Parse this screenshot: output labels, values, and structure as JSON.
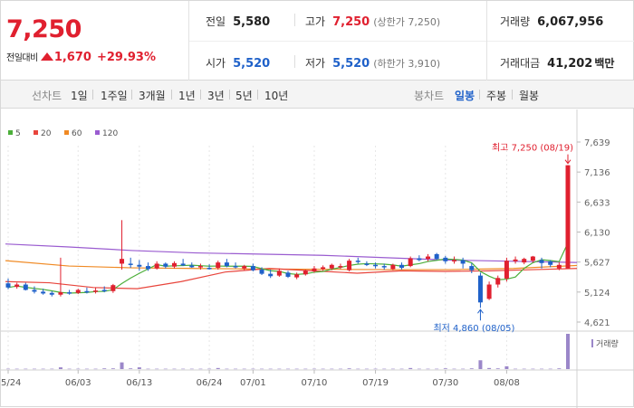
{
  "header": {
    "price": "7,250",
    "change_label": "전일대비",
    "change_value": "1,670",
    "change_pct": "+29.93%",
    "prev_close": {
      "label": "전일",
      "value": "5,580"
    },
    "high": {
      "label": "고가",
      "value": "7,250",
      "limit_label": "(상한가 7,250)"
    },
    "volume": {
      "label": "거래량",
      "value": "6,067,956"
    },
    "open": {
      "label": "시가",
      "value": "5,520"
    },
    "low": {
      "label": "저가",
      "value": "5,520",
      "limit_label": "(하한가 3,910)"
    },
    "amount": {
      "label": "거래대금",
      "value": "41,202",
      "unit": "백만"
    }
  },
  "toolbar": {
    "line_label": "선차트",
    "periods": [
      "1일",
      "1주일",
      "3개월",
      "1년",
      "3년",
      "5년",
      "10년"
    ],
    "candle_label": "봉차트",
    "candle_types": [
      "일봉",
      "주봉",
      "월봉"
    ],
    "active_candle": "일봉"
  },
  "colors": {
    "up": "#e0202f",
    "down": "#1f61c9",
    "ma5": "#4caf3a",
    "ma20": "#e8453c",
    "ma60": "#f08a24",
    "ma120": "#9a5cd0",
    "volume": "#9b87c9"
  },
  "chart_data": {
    "type": "candlestick",
    "legend": [
      {
        "name": "5",
        "color": "#4caf3a"
      },
      {
        "name": "20",
        "color": "#e8453c"
      },
      {
        "name": "60",
        "color": "#f08a24"
      },
      {
        "name": "120",
        "color": "#9a5cd0"
      }
    ],
    "y_ticks": [
      "7,639",
      "7,136",
      "6,633",
      "6,130",
      "5,627",
      "5,124",
      "4,621"
    ],
    "ylim": [
      4621,
      7639
    ],
    "x_ticks": [
      "05/24",
      "06/03",
      "06/13",
      "06/24",
      "07/01",
      "07/10",
      "07/19",
      "07/30",
      "08/08"
    ],
    "x_tick_index": [
      0,
      8,
      15,
      23,
      28,
      35,
      42,
      50,
      57
    ],
    "high_annotation": "최고 7,250 (08/19)",
    "low_annotation": "최저 4,860 (08/05)",
    "volume_label": "거래량",
    "candles": [
      [
        5270,
        5350,
        5170,
        5200
      ],
      [
        5210,
        5280,
        5180,
        5250
      ],
      [
        5250,
        5280,
        5150,
        5160
      ],
      [
        5160,
        5220,
        5100,
        5130
      ],
      [
        5130,
        5180,
        5080,
        5100
      ],
      [
        5110,
        5140,
        5050,
        5080
      ],
      [
        5080,
        5700,
        5050,
        5120
      ],
      [
        5120,
        5160,
        5080,
        5100
      ],
      [
        5110,
        5180,
        5090,
        5160
      ],
      [
        5140,
        5200,
        5100,
        5130
      ],
      [
        5130,
        5200,
        5100,
        5150
      ],
      [
        5160,
        5220,
        5120,
        5140
      ],
      [
        5140,
        5260,
        5110,
        5240
      ],
      [
        5600,
        6330,
        5500,
        5680
      ],
      [
        5600,
        5700,
        5530,
        5580
      ],
      [
        5580,
        5660,
        5480,
        5550
      ],
      [
        5560,
        5620,
        5480,
        5510
      ],
      [
        5520,
        5640,
        5500,
        5600
      ],
      [
        5600,
        5620,
        5520,
        5550
      ],
      [
        5550,
        5640,
        5520,
        5610
      ],
      [
        5600,
        5680,
        5560,
        5570
      ],
      [
        5570,
        5620,
        5530,
        5540
      ],
      [
        5540,
        5600,
        5500,
        5560
      ],
      [
        5530,
        5590,
        5500,
        5510
      ],
      [
        5530,
        5650,
        5500,
        5620
      ],
      [
        5620,
        5680,
        5540,
        5560
      ],
      [
        5560,
        5620,
        5520,
        5540
      ],
      [
        5520,
        5580,
        5490,
        5560
      ],
      [
        5560,
        5600,
        5470,
        5490
      ],
      [
        5500,
        5540,
        5410,
        5430
      ],
      [
        5430,
        5500,
        5360,
        5390
      ],
      [
        5400,
        5520,
        5380,
        5480
      ],
      [
        5450,
        5480,
        5360,
        5380
      ],
      [
        5370,
        5450,
        5340,
        5420
      ],
      [
        5420,
        5500,
        5400,
        5480
      ],
      [
        5470,
        5560,
        5450,
        5520
      ],
      [
        5510,
        5570,
        5480,
        5540
      ],
      [
        5520,
        5600,
        5490,
        5580
      ],
      [
        5540,
        5600,
        5510,
        5560
      ],
      [
        5490,
        5680,
        5470,
        5650
      ],
      [
        5650,
        5700,
        5600,
        5630
      ],
      [
        5600,
        5640,
        5560,
        5580
      ],
      [
        5580,
        5620,
        5520,
        5560
      ],
      [
        5560,
        5600,
        5500,
        5540
      ],
      [
        5510,
        5600,
        5490,
        5580
      ],
      [
        5580,
        5620,
        5500,
        5530
      ],
      [
        5560,
        5720,
        5540,
        5690
      ],
      [
        5690,
        5740,
        5640,
        5660
      ],
      [
        5680,
        5760,
        5640,
        5720
      ],
      [
        5760,
        5780,
        5660,
        5680
      ],
      [
        5700,
        5730,
        5600,
        5640
      ],
      [
        5650,
        5720,
        5600,
        5660
      ],
      [
        5660,
        5700,
        5520,
        5600
      ],
      [
        5560,
        5610,
        5440,
        5490
      ],
      [
        5400,
        5450,
        4860,
        4950
      ],
      [
        5010,
        5300,
        4990,
        5250
      ],
      [
        5250,
        5400,
        5200,
        5360
      ],
      [
        5350,
        5700,
        5300,
        5650
      ],
      [
        5640,
        5720,
        5600,
        5670
      ],
      [
        5620,
        5700,
        5590,
        5680
      ],
      [
        5650,
        5730,
        5620,
        5720
      ],
      [
        5660,
        5700,
        5520,
        5610
      ],
      [
        5640,
        5660,
        5540,
        5580
      ],
      [
        5520,
        5620,
        5490,
        5580
      ],
      [
        5520,
        7250,
        5520,
        7250
      ]
    ],
    "volume": [
      1,
      1,
      1,
      1,
      1,
      1,
      5,
      1,
      1,
      1,
      1,
      2,
      2,
      19,
      2,
      5,
      1,
      1,
      1,
      1,
      1,
      1,
      1,
      1,
      3,
      1,
      1,
      1,
      1,
      1,
      1,
      1,
      1,
      1,
      1,
      1,
      1,
      1,
      1,
      2,
      1,
      1,
      1,
      1,
      1,
      1,
      3,
      1,
      1,
      1,
      2,
      1,
      1,
      2,
      25,
      3,
      2,
      8,
      1,
      1,
      1,
      1,
      1,
      2,
      100
    ],
    "ma120": [
      5930,
      5880,
      5820,
      5780,
      5760,
      5740,
      5700,
      5660,
      5640,
      5620
    ],
    "ma60": [
      5650,
      5560,
      5530,
      5520,
      5510,
      5505,
      5500,
      5500,
      5520,
      5570
    ],
    "ma20": [
      5300,
      5280,
      5200,
      5180,
      5300,
      5460,
      5520,
      5480,
      5440,
      5480,
      5470,
      5480,
      5500,
      5520
    ]
  }
}
